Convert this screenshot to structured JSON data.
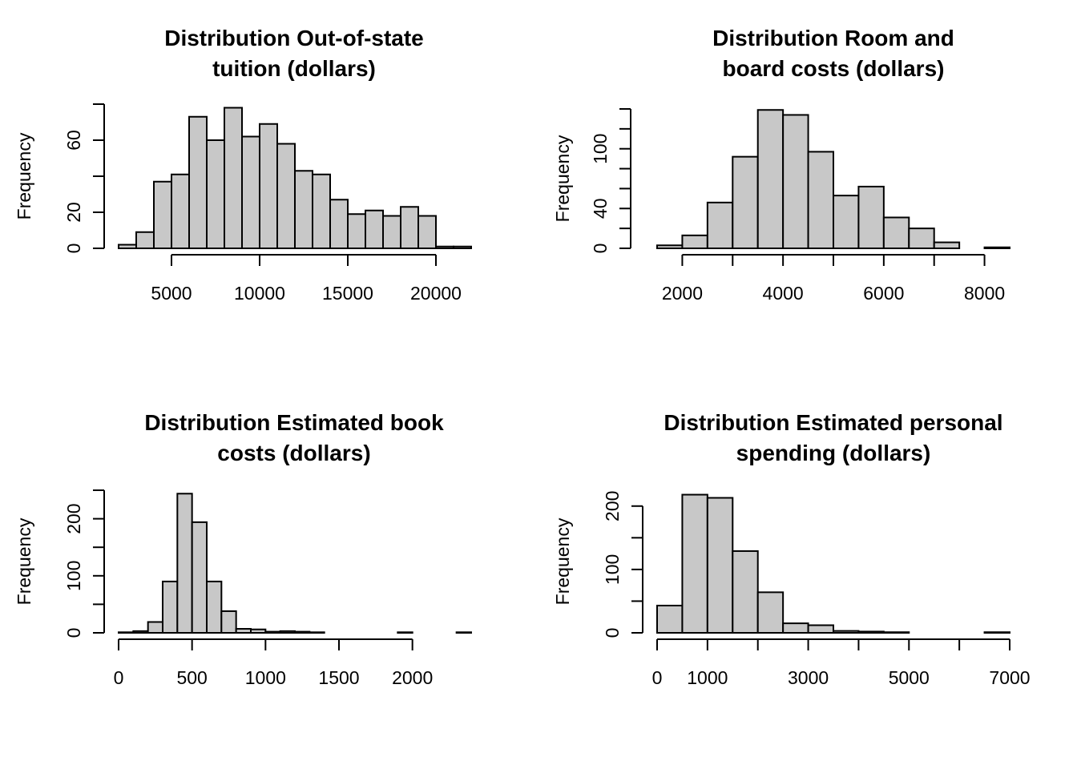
{
  "chart_data": [
    {
      "type": "bar",
      "title": [
        "Distribution Out-of-state",
        "tuition (dollars)"
      ],
      "ylabel": "Frequency",
      "xlabel": "",
      "bins": [
        2000,
        3000,
        4000,
        5000,
        6000,
        7000,
        8000,
        9000,
        10000,
        11000,
        12000,
        13000,
        14000,
        15000,
        16000,
        17000,
        18000,
        19000,
        20000,
        21000,
        22000
      ],
      "counts": [
        2,
        9,
        37,
        41,
        73,
        60,
        78,
        62,
        69,
        58,
        43,
        41,
        27,
        19,
        21,
        18,
        23,
        18,
        1,
        1
      ],
      "xticks": [
        5000,
        10000,
        15000,
        20000
      ],
      "xtick_labels": [
        "5000",
        "10000",
        "15000",
        "20000"
      ],
      "yticks": [
        0,
        20,
        40,
        60,
        80
      ],
      "ytick_labels": [
        "0",
        "20",
        "",
        "60",
        ""
      ],
      "xlim": [
        2000,
        22000
      ],
      "ylim": [
        0,
        80
      ]
    },
    {
      "type": "bar",
      "title": [
        "Distribution Room and",
        "board costs (dollars)"
      ],
      "ylabel": "Frequency",
      "xlabel": "",
      "bins": [
        1500,
        2000,
        2500,
        3000,
        3500,
        4000,
        4500,
        5000,
        5500,
        6000,
        6500,
        7000,
        7500,
        8000,
        8500
      ],
      "counts": [
        3,
        13,
        46,
        92,
        139,
        134,
        97,
        53,
        62,
        31,
        20,
        6,
        0,
        1
      ],
      "xticks": [
        2000,
        3000,
        4000,
        5000,
        6000,
        7000,
        8000
      ],
      "xtick_labels": [
        "2000",
        "",
        "4000",
        "",
        "6000",
        "",
        "8000"
      ],
      "yticks": [
        0,
        20,
        40,
        60,
        80,
        100,
        120,
        140
      ],
      "ytick_labels": [
        "0",
        "",
        "40",
        "",
        "",
        "100",
        "",
        ""
      ],
      "xlim": [
        1500,
        8500
      ],
      "ylim": [
        0,
        140
      ]
    },
    {
      "type": "bar",
      "title": [
        "Distribution Estimated book",
        "costs (dollars)"
      ],
      "ylabel": "Frequency",
      "xlabel": "",
      "bins": [
        0,
        100,
        200,
        300,
        400,
        500,
        600,
        700,
        800,
        900,
        1000,
        1100,
        1200,
        1300,
        1400,
        1500,
        1600,
        1700,
        1800,
        1900,
        2000,
        2100,
        2200,
        2300,
        2400
      ],
      "counts": [
        1,
        3,
        19,
        90,
        244,
        194,
        90,
        38,
        7,
        6,
        2,
        3,
        2,
        1,
        0,
        0,
        0,
        0,
        0,
        1,
        0,
        0,
        0,
        1
      ],
      "xticks": [
        0,
        500,
        1000,
        1500,
        2000
      ],
      "xtick_labels": [
        "0",
        "500",
        "1000",
        "1500",
        "2000"
      ],
      "yticks": [
        0,
        50,
        100,
        150,
        200,
        250
      ],
      "ytick_labels": [
        "0",
        "",
        "100",
        "",
        "200",
        ""
      ],
      "xlim": [
        0,
        2400
      ],
      "ylim": [
        0,
        250
      ]
    },
    {
      "type": "bar",
      "title": [
        "Distribution Estimated personal",
        "spending (dollars)"
      ],
      "ylabel": "Frequency",
      "xlabel": "",
      "bins": [
        0,
        500,
        1000,
        1500,
        2000,
        2500,
        3000,
        3500,
        4000,
        4500,
        5000,
        5500,
        6000,
        6500,
        7000
      ],
      "counts": [
        43,
        218,
        213,
        129,
        64,
        15,
        12,
        3,
        2,
        1,
        0,
        0,
        0,
        1
      ],
      "xticks": [
        0,
        1000,
        2000,
        3000,
        4000,
        5000,
        6000,
        7000
      ],
      "xtick_labels": [
        "0",
        "1000",
        "",
        "3000",
        "",
        "5000",
        "",
        "7000"
      ],
      "yticks": [
        0,
        50,
        100,
        150,
        200
      ],
      "ytick_labels": [
        "0",
        "",
        "100",
        "",
        "200"
      ],
      "xlim": [
        0,
        7000
      ],
      "ylim": [
        0,
        225
      ]
    }
  ]
}
